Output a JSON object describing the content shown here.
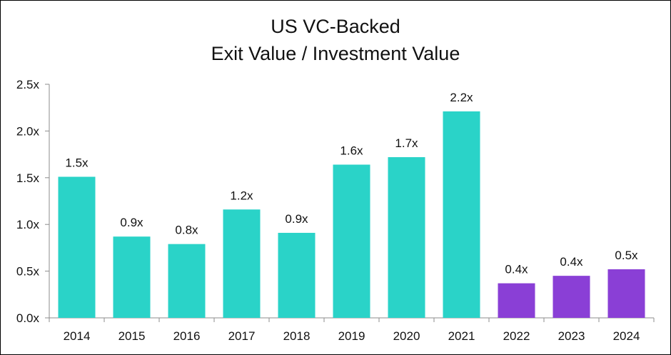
{
  "chart_data": {
    "type": "bar",
    "title": "US VC-Backed",
    "subtitle": "Exit Value / Investment Value",
    "xlabel": "",
    "ylabel": "",
    "categories": [
      "2014",
      "2015",
      "2016",
      "2017",
      "2018",
      "2019",
      "2020",
      "2021",
      "2022",
      "2023",
      "2024"
    ],
    "values": [
      1.51,
      0.87,
      0.79,
      1.16,
      0.91,
      1.64,
      1.72,
      2.21,
      0.37,
      0.45,
      0.52
    ],
    "data_labels": [
      "1.5x",
      "0.9x",
      "0.8x",
      "1.2x",
      "0.9x",
      "1.6x",
      "1.7x",
      "2.2x",
      "0.4x",
      "0.4x",
      "0.5x"
    ],
    "ylim": [
      0,
      2.5
    ],
    "y_ticks": [
      0,
      0.5,
      1.0,
      1.5,
      2.0,
      2.5
    ],
    "y_tick_labels": [
      "0.0x",
      "0.5x",
      "1.0x",
      "1.5x",
      "2.0x",
      "2.5x"
    ],
    "bar_colors": [
      "#2ad3c8",
      "#2ad3c8",
      "#2ad3c8",
      "#2ad3c8",
      "#2ad3c8",
      "#2ad3c8",
      "#2ad3c8",
      "#2ad3c8",
      "#8a3fd6",
      "#8a3fd6",
      "#8a3fd6"
    ],
    "grid": false,
    "legend": "none"
  }
}
